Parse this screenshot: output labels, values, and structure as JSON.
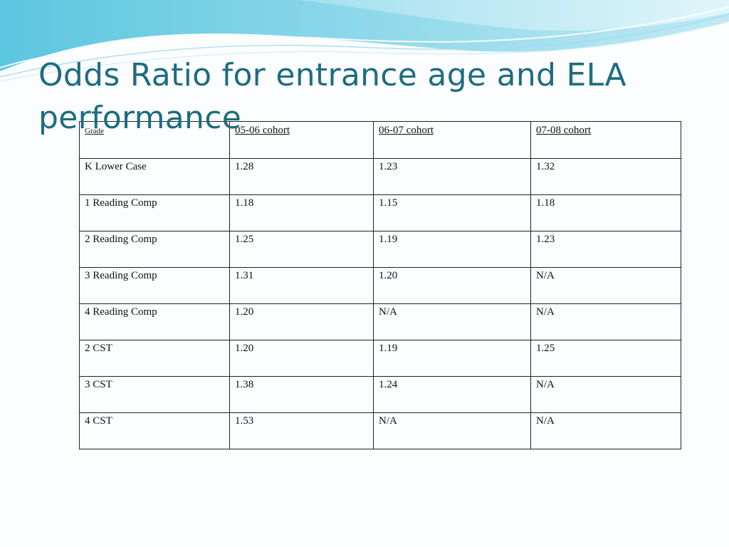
{
  "title": "Odds Ratio for entrance age and ELA performance",
  "table": {
    "headers": [
      "Grade",
      "05-06 cohort",
      "06-07 cohort",
      "07-08 cohort"
    ],
    "rows": [
      [
        "K Lower Case",
        "1.28",
        "1.23",
        "1.32"
      ],
      [
        "1 Reading Comp",
        "1.18",
        "1.15",
        "1.18"
      ],
      [
        "2 Reading Comp",
        "1.25",
        "1.19",
        "1.23"
      ],
      [
        "3 Reading Comp",
        "1.31",
        "1.20",
        "N/A"
      ],
      [
        "4 Reading Comp",
        "1.20",
        "N/A",
        "N/A"
      ],
      [
        "2 CST",
        "1.20",
        "1.19",
        "1.25"
      ],
      [
        "3 CST",
        "1.38",
        "1.24",
        "N/A"
      ],
      [
        "4 CST",
        "1.53",
        "N/A",
        "N/A"
      ]
    ]
  },
  "theme": {
    "title_color": "#1d6c80",
    "wave_light": "#bfe9f4",
    "wave_dark": "#5cc6e0"
  }
}
